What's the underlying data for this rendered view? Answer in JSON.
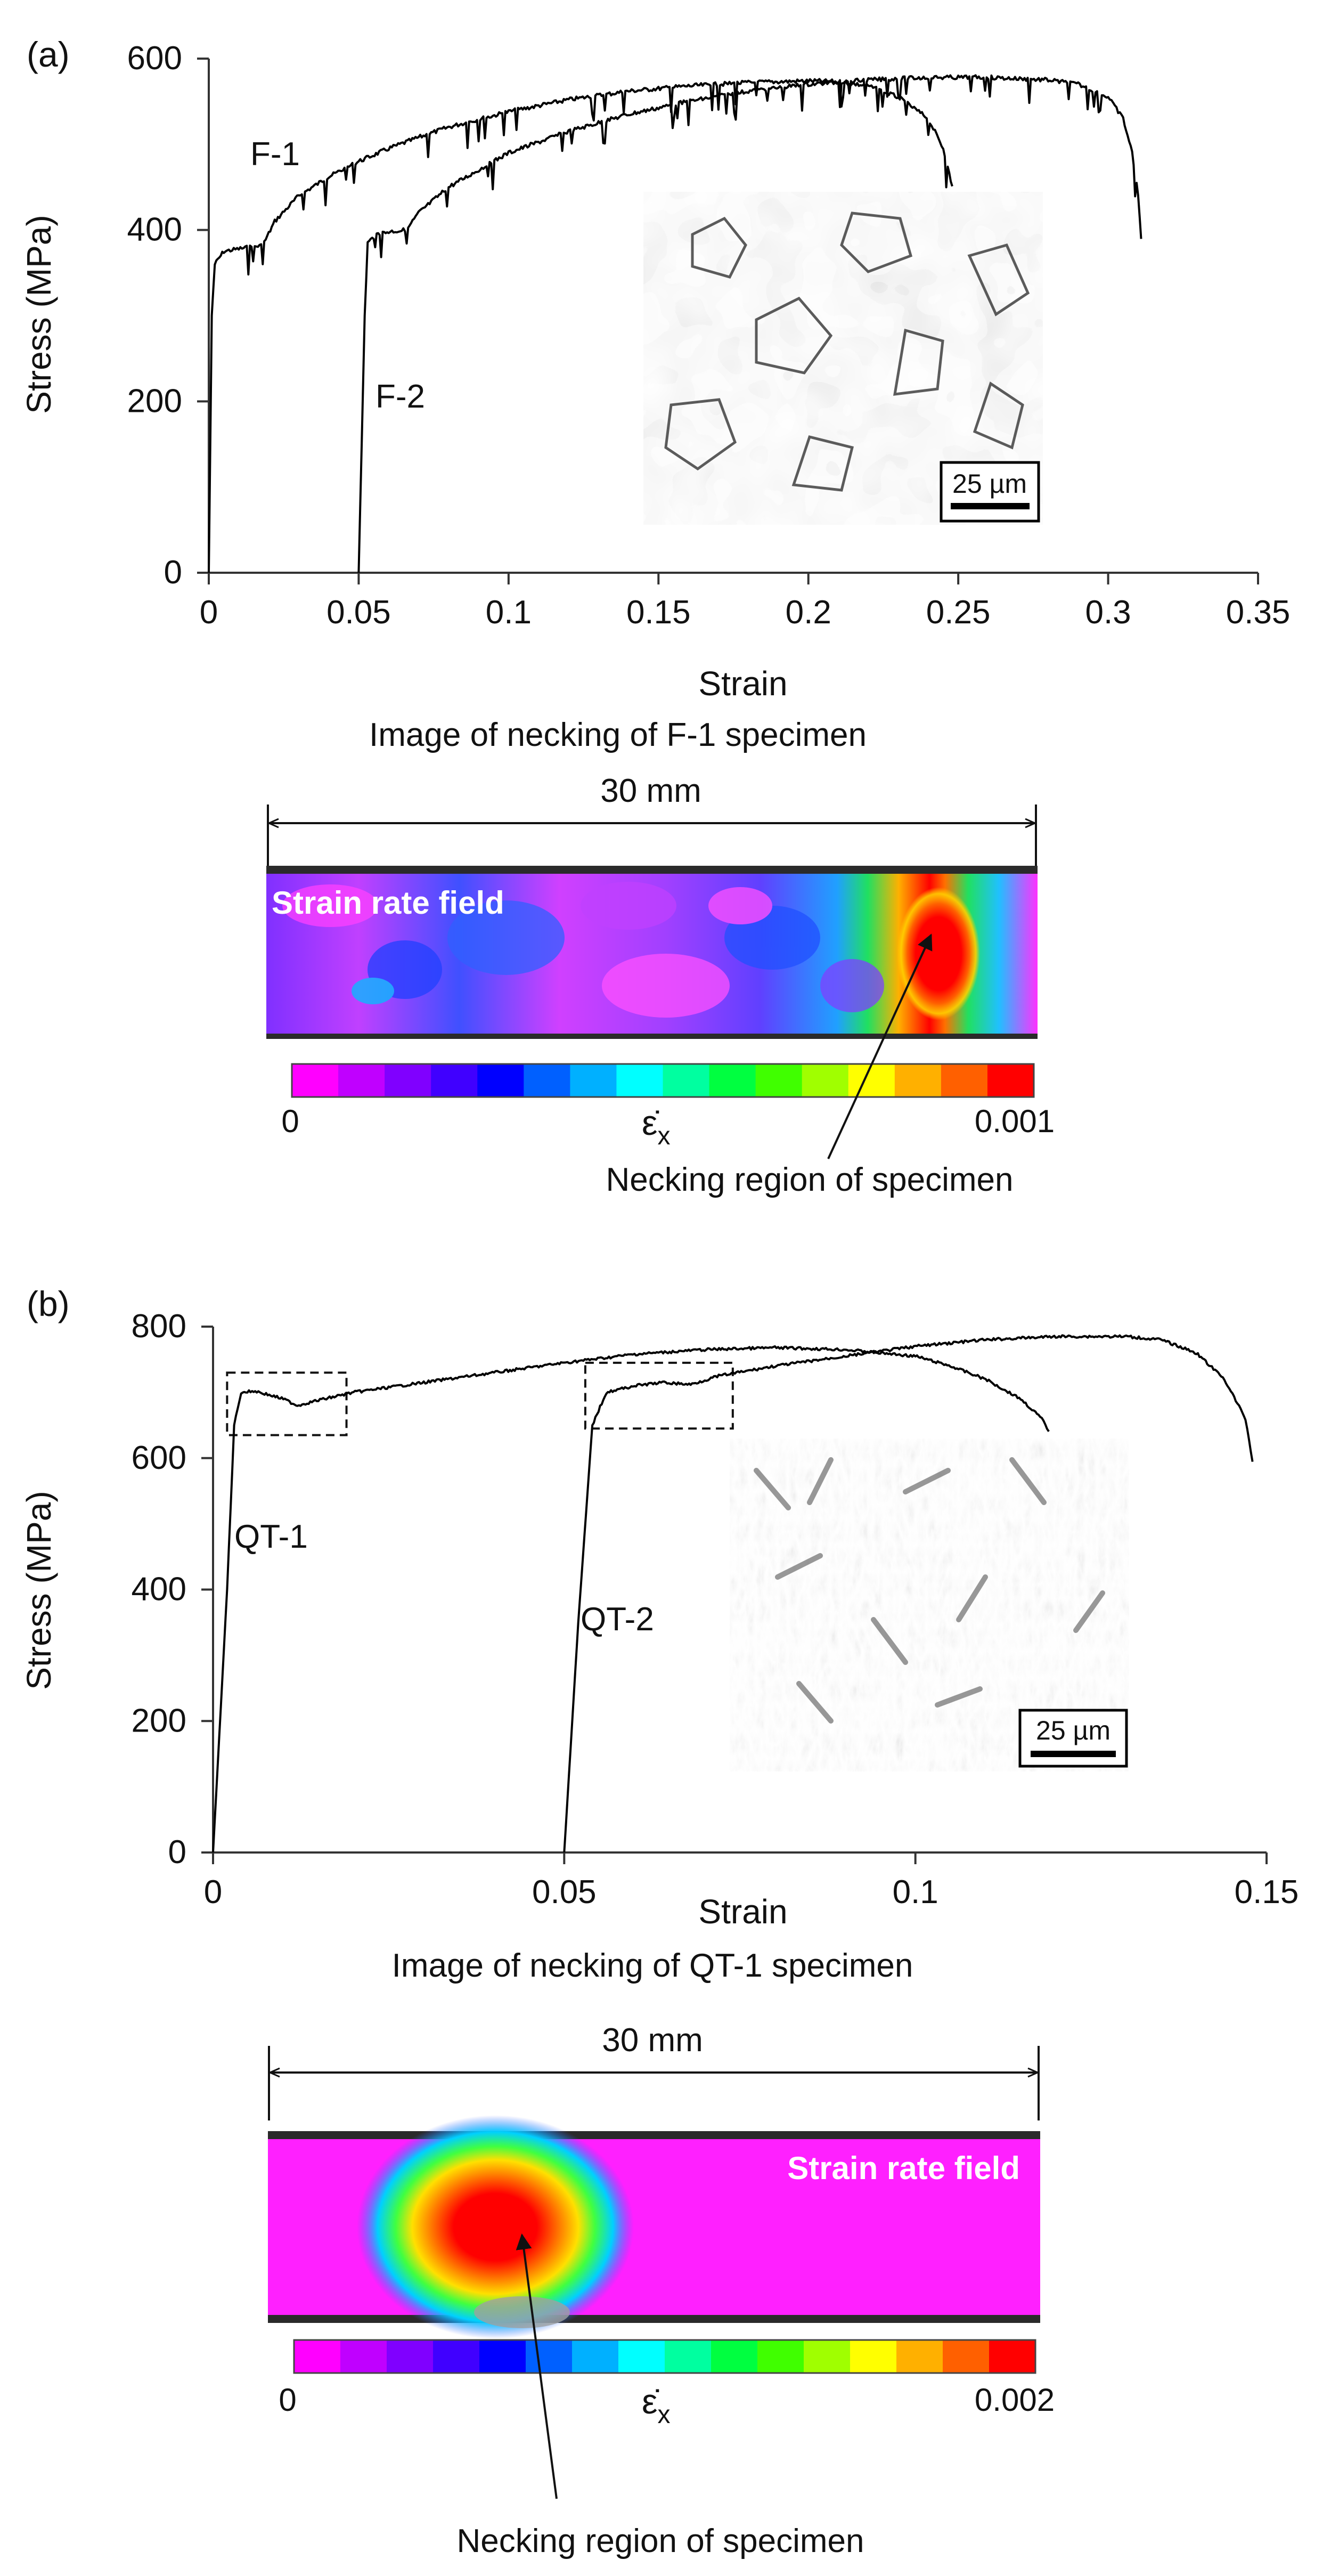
{
  "chart_data": [
    {
      "panel_label": "(a)",
      "type": "line",
      "xlabel": "Strain",
      "ylabel": "Stress (MPa)",
      "xlim": [
        0,
        0.35
      ],
      "ylim": [
        0,
        600
      ],
      "xticks": [
        "0",
        "0.05",
        "0.1",
        "0.15",
        "0.2",
        "0.25",
        "0.3",
        "0.35"
      ],
      "yticks": [
        "0",
        "200",
        "400",
        "600"
      ],
      "grid": false,
      "series": [
        {
          "name": "F-1",
          "color": "#000000",
          "serrated": true,
          "points": [
            [
              0,
              0
            ],
            [
              0.001,
              300
            ],
            [
              0.002,
              360
            ],
            [
              0.005,
              375
            ],
            [
              0.01,
              378
            ],
            [
              0.018,
              382
            ],
            [
              0.022,
              410
            ],
            [
              0.03,
              440
            ],
            [
              0.04,
              462
            ],
            [
              0.05,
              480
            ],
            [
              0.06,
              495
            ],
            [
              0.07,
              508
            ],
            [
              0.08,
              520
            ],
            [
              0.1,
              538
            ],
            [
              0.12,
              552
            ],
            [
              0.14,
              562
            ],
            [
              0.16,
              568
            ],
            [
              0.18,
              572
            ],
            [
              0.2,
              574
            ],
            [
              0.21,
              573
            ],
            [
              0.22,
              568
            ],
            [
              0.23,
              555
            ],
            [
              0.24,
              530
            ],
            [
              0.245,
              495
            ],
            [
              0.248,
              450
            ]
          ]
        },
        {
          "name": "F-2",
          "color": "#000000",
          "serrated": true,
          "points": [
            [
              0.05,
              0
            ],
            [
              0.052,
              300
            ],
            [
              0.053,
              385
            ],
            [
              0.056,
              395
            ],
            [
              0.06,
              398
            ],
            [
              0.066,
              400
            ],
            [
              0.07,
              420
            ],
            [
              0.08,
              450
            ],
            [
              0.09,
              470
            ],
            [
              0.1,
              490
            ],
            [
              0.12,
              515
            ],
            [
              0.14,
              535
            ],
            [
              0.16,
              550
            ],
            [
              0.18,
              562
            ],
            [
              0.2,
              570
            ],
            [
              0.22,
              575
            ],
            [
              0.24,
              578
            ],
            [
              0.26,
              578
            ],
            [
              0.28,
              575
            ],
            [
              0.29,
              570
            ],
            [
              0.3,
              555
            ],
            [
              0.305,
              530
            ],
            [
              0.308,
              490
            ],
            [
              0.31,
              440
            ],
            [
              0.311,
              390
            ]
          ]
        }
      ],
      "inset": {
        "scale_bar": "25 µm"
      }
    },
    {
      "panel_label": "(b)",
      "type": "line",
      "xlabel": "Strain",
      "ylabel": "Stress (MPa)",
      "xlim": [
        0,
        0.15
      ],
      "ylim": [
        0,
        800
      ],
      "xticks": [
        "0",
        "0.05",
        "0.1",
        "0.15"
      ],
      "yticks": [
        "0",
        "200",
        "400",
        "600",
        "800"
      ],
      "grid": false,
      "series": [
        {
          "name": "QT-1",
          "color": "#000000",
          "serrated": false,
          "points": [
            [
              0,
              0
            ],
            [
              0.002,
              400
            ],
            [
              0.003,
              650
            ],
            [
              0.004,
              700
            ],
            [
              0.006,
              702
            ],
            [
              0.01,
              690
            ],
            [
              0.012,
              680
            ],
            [
              0.015,
              688
            ],
            [
              0.02,
              700
            ],
            [
              0.03,
              715
            ],
            [
              0.04,
              730
            ],
            [
              0.05,
              745
            ],
            [
              0.06,
              758
            ],
            [
              0.07,
              765
            ],
            [
              0.08,
              768
            ],
            [
              0.09,
              765
            ],
            [
              0.1,
              755
            ],
            [
              0.105,
              740
            ],
            [
              0.11,
              720
            ],
            [
              0.115,
              690
            ],
            [
              0.118,
              660
            ],
            [
              0.119,
              640
            ]
          ]
        },
        {
          "name": "QT-2",
          "color": "#000000",
          "serrated": false,
          "points": [
            [
              0.05,
              0
            ],
            [
              0.052,
              350
            ],
            [
              0.054,
              650
            ],
            [
              0.056,
              700
            ],
            [
              0.06,
              710
            ],
            [
              0.064,
              715
            ],
            [
              0.068,
              712
            ],
            [
              0.072,
              725
            ],
            [
              0.08,
              740
            ],
            [
              0.09,
              755
            ],
            [
              0.1,
              770
            ],
            [
              0.11,
              780
            ],
            [
              0.12,
              785
            ],
            [
              0.13,
              785
            ],
            [
              0.135,
              780
            ],
            [
              0.14,
              760
            ],
            [
              0.144,
              720
            ],
            [
              0.147,
              660
            ],
            [
              0.148,
              595
            ]
          ]
        }
      ],
      "dashed_boxes": [
        {
          "x": [
            0.002,
            0.019
          ],
          "y": [
            635,
            730
          ]
        },
        {
          "x": [
            0.053,
            0.074
          ],
          "y": [
            645,
            745
          ]
        }
      ],
      "inset": {
        "scale_bar": "25 µm"
      }
    }
  ],
  "panel_a": {
    "necking_title": "Image of necking of F-1 specimen",
    "length_label": "30 mm",
    "field_label": "Strain rate field",
    "colorbar_min": "0",
    "colorbar_max": "0.001",
    "colorbar_symbol": "ε̇",
    "colorbar_subscript": "x",
    "necking_region_label": "Necking region of specimen"
  },
  "panel_b": {
    "necking_title": "Image of necking of QT-1 specimen",
    "length_label": "30 mm",
    "field_label": "Strain rate field",
    "colorbar_min": "0",
    "colorbar_max": "0.002",
    "colorbar_symbol": "ε̇",
    "colorbar_subscript": "x",
    "necking_region_label": "Necking region of specimen"
  },
  "colormap": [
    "#ff00ff",
    "#c000ff",
    "#8000ff",
    "#4000ff",
    "#0000ff",
    "#0060ff",
    "#00b0ff",
    "#00ffff",
    "#00ffa0",
    "#00ff40",
    "#40ff00",
    "#a0ff00",
    "#ffff00",
    "#ffb000",
    "#ff6000",
    "#ff0000"
  ]
}
